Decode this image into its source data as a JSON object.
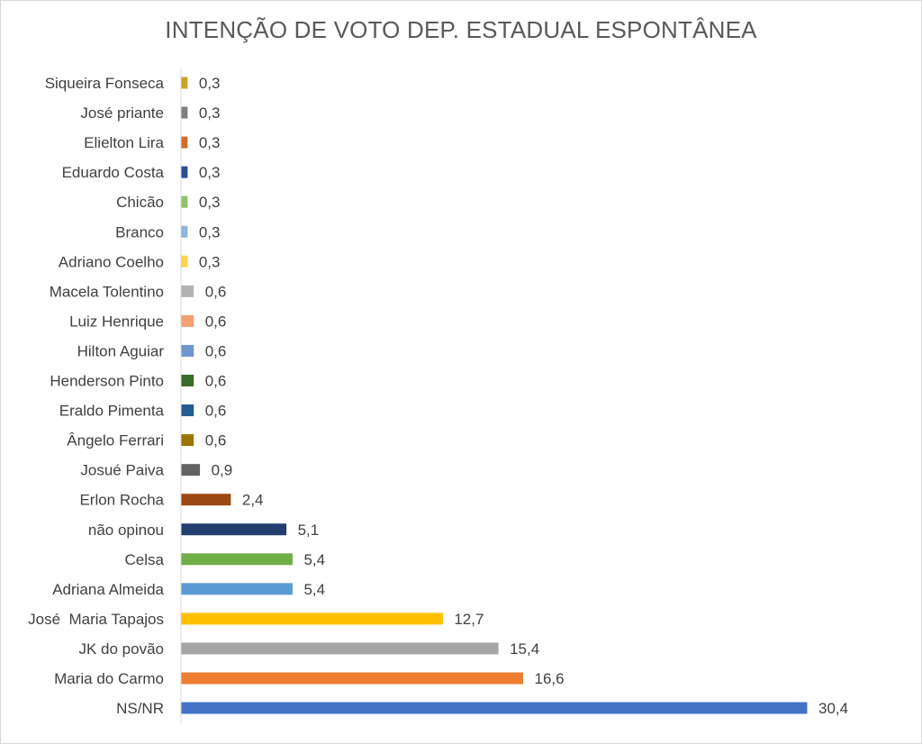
{
  "chart_data": {
    "type": "bar",
    "orientation": "horizontal",
    "title": "INTENÇÃO DE VOTO DEP. ESTADUAL ESPONTÂNEA",
    "xlabel": "",
    "ylabel": "",
    "xlim": [
      0,
      30.4
    ],
    "grid": false,
    "legend": "none",
    "categories": [
      "Siqueira Fonseca",
      "José priante",
      "Elielton Lira",
      "Eduardo Costa",
      "Chicão",
      "Branco",
      "Adriano Coelho",
      "Macela Tolentino",
      "Luiz Henrique",
      "Hilton Aguiar",
      "Henderson Pinto",
      "Eraldo Pimenta",
      "Ângelo Ferrari",
      "Josué Paiva",
      "Erlon Rocha",
      "não opinou",
      "Celsa",
      "Adriana Almeida",
      "José  Maria Tapajos",
      "JK do povão",
      "Maria do Carmo",
      "NS/NR"
    ],
    "values": [
      0.3,
      0.3,
      0.3,
      0.3,
      0.3,
      0.3,
      0.3,
      0.6,
      0.6,
      0.6,
      0.6,
      0.6,
      0.6,
      0.9,
      2.4,
      5.1,
      5.4,
      5.4,
      12.7,
      15.4,
      16.6,
      30.4
    ],
    "value_labels": [
      "0,3",
      "0,3",
      "0,3",
      "0,3",
      "0,3",
      "0,3",
      "0,3",
      "0,6",
      "0,6",
      "0,6",
      "0,6",
      "0,6",
      "0,6",
      "0,9",
      "2,4",
      "5,1",
      "5,4",
      "5,4",
      "12,7",
      "15,4",
      "16,6",
      "30,4"
    ],
    "colors": [
      "#c9a227",
      "#7f7f7f",
      "#d46c2a",
      "#2b4f91",
      "#8fc36a",
      "#8ab6e0",
      "#ffd24d",
      "#b3b3b3",
      "#f4a072",
      "#6f94d0",
      "#3b6b28",
      "#225e92",
      "#9a7700",
      "#636363",
      "#9c4812",
      "#233e6e",
      "#70ad47",
      "#5b9bd5",
      "#ffc000",
      "#a5a5a5",
      "#ed7d31",
      "#4472c4"
    ]
  }
}
